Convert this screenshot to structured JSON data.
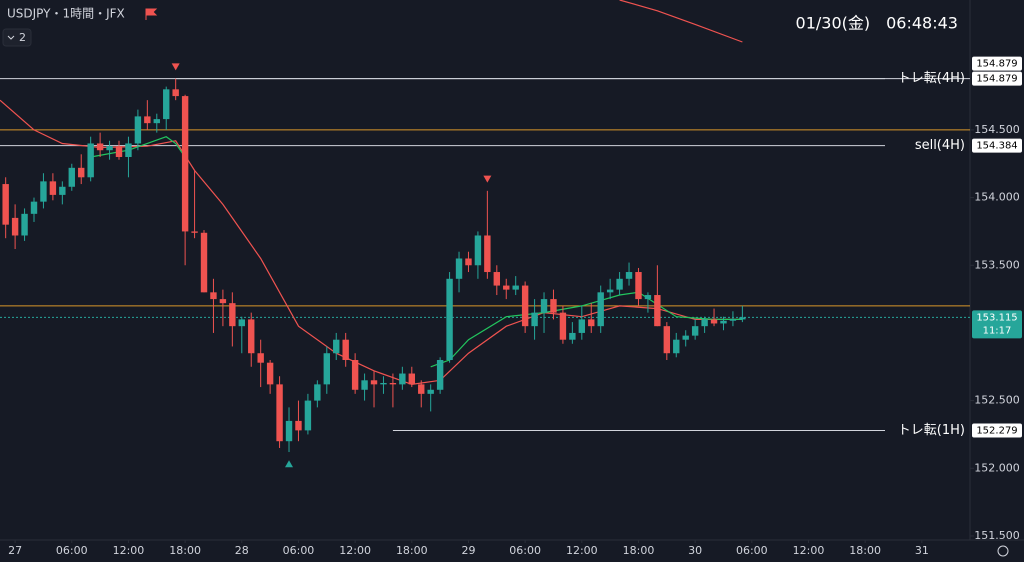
{
  "chart_data": {
    "type": "candlestick",
    "title": "USDJPY・1時間・JFX",
    "indicator_count": "2",
    "clock": "01/30(金)　06:48:43",
    "up_color": "#26a69a",
    "down_color": "#ef5350",
    "xlim": [
      -1.6,
      101.1
    ],
    "ylim": [
      151.47,
      155.46
    ],
    "xticks": [
      {
        "value": 0,
        "label": "27"
      },
      {
        "value": 6,
        "label": "06:00"
      },
      {
        "value": 12,
        "label": "12:00"
      },
      {
        "value": 18,
        "label": "18:00"
      },
      {
        "value": 24,
        "label": "28"
      },
      {
        "value": 30,
        "label": "06:00"
      },
      {
        "value": 36,
        "label": "12:00"
      },
      {
        "value": 42,
        "label": "18:00"
      },
      {
        "value": 48,
        "label": "29"
      },
      {
        "value": 54,
        "label": "06:00"
      },
      {
        "value": 60,
        "label": "12:00"
      },
      {
        "value": 66,
        "label": "18:00"
      },
      {
        "value": 72,
        "label": "30"
      },
      {
        "value": 78,
        "label": "06:00"
      },
      {
        "value": 84,
        "label": "12:00"
      },
      {
        "value": 90,
        "label": "18:00"
      },
      {
        "value": 96,
        "label": "31"
      }
    ],
    "yticks": [
      {
        "value": 151.5,
        "label": "151.500"
      },
      {
        "value": 152,
        "label": "152.000"
      },
      {
        "value": 152.5,
        "label": "152.500"
      },
      {
        "value": 153.5,
        "label": "153.500"
      },
      {
        "value": 154,
        "label": "154.000"
      },
      {
        "value": 154.5,
        "label": "154.500"
      }
    ],
    "candles": {
      "x": [
        -1,
        0,
        1,
        2,
        3,
        4,
        5,
        6,
        7,
        8,
        9,
        10,
        11,
        12,
        13,
        14,
        15,
        16,
        17,
        18,
        19,
        20,
        21,
        22,
        23,
        24,
        25,
        26,
        27,
        28,
        29,
        30,
        31,
        32,
        33,
        34,
        35,
        36,
        37,
        38,
        39,
        40,
        41,
        42,
        43,
        44,
        45,
        46,
        47,
        48,
        49,
        50,
        51,
        52,
        53,
        54,
        55,
        56,
        57,
        58,
        59,
        60,
        61,
        62,
        63,
        64,
        65,
        66,
        67,
        68,
        69,
        70,
        71,
        72,
        73,
        74,
        75,
        76,
        77
      ],
      "open": [
        154.1,
        153.85,
        153.72,
        153.88,
        153.97,
        154.12,
        154.02,
        154.08,
        154.22,
        154.15,
        154.4,
        154.35,
        154.38,
        154.3,
        154.4,
        154.6,
        154.55,
        154.58,
        154.8,
        154.75,
        153.75,
        153.74,
        153.3,
        153.25,
        153.22,
        153.05,
        153.1,
        152.85,
        152.78,
        152.62,
        152.2,
        152.35,
        152.28,
        152.5,
        152.62,
        152.85,
        152.95,
        152.8,
        152.58,
        152.65,
        152.62,
        152.63,
        152.62,
        152.7,
        152.62,
        152.55,
        152.58,
        152.8,
        153.4,
        153.55,
        153.5,
        153.72,
        153.45,
        153.35,
        153.32,
        153.35,
        153.05,
        153.15,
        153.25,
        153.15,
        152.95,
        153.0,
        153.1,
        153.05,
        153.3,
        153.32,
        153.4,
        153.45,
        153.25,
        153.28,
        153.05,
        152.85,
        152.95,
        152.98,
        153.05,
        153.1,
        153.07,
        153.09,
        153.1
      ],
      "high": [
        154.15,
        153.95,
        153.92,
        154.0,
        154.18,
        154.18,
        154.12,
        154.25,
        154.32,
        154.45,
        154.48,
        154.42,
        154.42,
        154.45,
        154.65,
        154.72,
        154.62,
        154.82,
        154.879,
        154.76,
        154.2,
        153.76,
        153.4,
        153.32,
        153.3,
        153.12,
        153.15,
        152.95,
        152.8,
        152.68,
        152.45,
        152.5,
        152.55,
        152.65,
        152.9,
        153.0,
        153.0,
        152.85,
        152.7,
        152.72,
        152.68,
        152.7,
        152.75,
        152.75,
        152.65,
        152.62,
        152.82,
        153.45,
        153.6,
        153.6,
        153.75,
        154.05,
        153.5,
        153.4,
        153.42,
        153.38,
        153.25,
        153.3,
        153.32,
        153.2,
        153.08,
        153.2,
        153.22,
        153.35,
        153.4,
        153.45,
        153.52,
        153.48,
        153.3,
        153.5,
        153.08,
        153.0,
        153.02,
        153.1,
        153.12,
        153.18,
        153.12,
        153.16,
        153.2
      ],
      "low": [
        153.7,
        153.62,
        153.68,
        153.82,
        153.92,
        153.98,
        153.95,
        154.05,
        154.1,
        154.12,
        154.3,
        154.28,
        154.28,
        154.15,
        154.35,
        154.5,
        154.48,
        154.5,
        154.72,
        153.5,
        153.7,
        153.3,
        153.0,
        153.05,
        152.9,
        152.85,
        152.75,
        152.6,
        152.55,
        152.15,
        152.12,
        152.2,
        152.25,
        152.45,
        152.55,
        152.8,
        152.75,
        152.55,
        152.5,
        152.45,
        152.55,
        152.45,
        152.58,
        152.6,
        152.45,
        152.42,
        152.55,
        152.78,
        153.3,
        153.45,
        153.4,
        153.4,
        153.28,
        153.25,
        153.28,
        153.0,
        152.95,
        153.0,
        153.1,
        152.92,
        152.92,
        152.95,
        153.0,
        153.0,
        153.25,
        153.28,
        153.35,
        153.2,
        153.15,
        153.05,
        152.8,
        152.82,
        152.9,
        152.95,
        153.0,
        153.05,
        153.02,
        153.05,
        153.08
      ],
      "close": [
        153.8,
        153.72,
        153.88,
        153.97,
        154.12,
        154.02,
        154.08,
        154.22,
        154.15,
        154.4,
        154.35,
        154.38,
        154.3,
        154.4,
        154.6,
        154.55,
        154.58,
        154.8,
        154.75,
        153.75,
        153.74,
        153.3,
        153.25,
        153.22,
        153.05,
        153.1,
        152.85,
        152.78,
        152.62,
        152.2,
        152.35,
        152.28,
        152.5,
        152.62,
        152.85,
        152.95,
        152.8,
        152.58,
        152.65,
        152.62,
        152.63,
        152.62,
        152.7,
        152.62,
        152.55,
        152.58,
        152.8,
        153.4,
        153.55,
        153.5,
        153.72,
        153.45,
        153.35,
        153.32,
        153.35,
        153.05,
        153.15,
        153.25,
        153.15,
        152.95,
        153.0,
        153.1,
        153.05,
        153.3,
        153.32,
        153.4,
        153.45,
        153.25,
        153.28,
        153.05,
        152.85,
        152.95,
        152.98,
        153.05,
        153.1,
        153.07,
        153.09,
        153.1,
        153.115
      ]
    },
    "lines": [
      {
        "color": "#ef5350",
        "x": [
          -1.6,
          2,
          5,
          9,
          14,
          17,
          19,
          22,
          26,
          30,
          34,
          38,
          42,
          45,
          48,
          52,
          56,
          60,
          64,
          68,
          72,
          77
        ],
        "values": [
          154.72,
          154.5,
          154.4,
          154.37,
          154.38,
          154.42,
          154.2,
          153.95,
          153.55,
          153.05,
          152.85,
          152.72,
          152.62,
          152.65,
          152.85,
          153.05,
          153.15,
          153.12,
          153.2,
          153.18,
          153.1,
          153.1
        ]
      },
      {
        "color": "#22c55e",
        "x": [
          8,
          12,
          16,
          17,
          18,
          19,
          44,
          46,
          48,
          52,
          56,
          60,
          64,
          66,
          70,
          74,
          77
        ],
        "values": [
          154.3,
          154.35,
          154.45,
          154.4,
          154.3,
          null,
          152.75,
          152.8,
          152.95,
          153.12,
          153.15,
          153.2,
          153.28,
          153.3,
          153.12,
          153.1,
          153.1
        ]
      },
      {
        "color": "#ef5350",
        "x": [
          64,
          68,
          72,
          77
        ],
        "values": [
          155.46,
          155.38,
          155.28,
          155.15
        ]
      }
    ],
    "levels": [
      {
        "value": 154.879,
        "label": "154.879",
        "start": 17,
        "color": "#d1d4dc",
        "text": "トレ転(4H)"
      },
      {
        "value": 154.879,
        "label": "154.879",
        "color": "#d1d4dc"
      },
      {
        "value": 154.5,
        "color": "#d9962a"
      },
      {
        "value": 154.384,
        "label": "154.384",
        "color": "#d1d4dc",
        "text": "sell(4H)"
      },
      {
        "value": 153.2,
        "color": "#d9962a"
      },
      {
        "value": 153.115,
        "label": "153.115",
        "sublabel": "11:17",
        "color": "#26a69a",
        "dashed": true
      },
      {
        "value": 152.279,
        "label": "152.279",
        "start": 40,
        "color": "#d1d4dc",
        "text": "トレ転(1H)"
      }
    ],
    "signals": [
      {
        "x": 17,
        "value": 154.97,
        "direction": "down"
      },
      {
        "x": 50,
        "value": 154.14,
        "direction": "down"
      },
      {
        "x": 29,
        "value": 152.03,
        "direction": "up"
      }
    ]
  }
}
